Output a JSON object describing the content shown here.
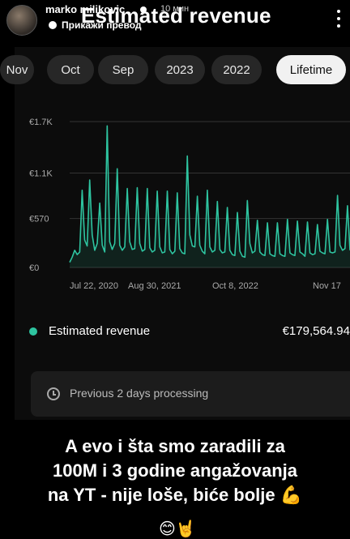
{
  "story": {
    "username": "marko milikovic",
    "time_ago": "10 мин",
    "translate_label": "Прикажи превод",
    "title": "Estimated revenue"
  },
  "tabs": [
    {
      "label": "Nov",
      "active": false
    },
    {
      "label": "Oct",
      "active": false
    },
    {
      "label": "Sep",
      "active": false
    },
    {
      "label": "2023",
      "active": false
    },
    {
      "label": "2022",
      "active": false
    },
    {
      "label": "Lifetime",
      "active": true
    }
  ],
  "chart_data": {
    "type": "line",
    "title": "",
    "xlabel": "",
    "ylabel": "",
    "y_ticks": [
      "€1.7K",
      "€1.1K",
      "€570",
      "€0"
    ],
    "x_ticks": [
      "Jul 22, 2020",
      "Aug 30, 2021",
      "Oct 8, 2022",
      "Nov 17"
    ],
    "ylim": [
      0,
      1700
    ],
    "grid": true,
    "series": [
      {
        "name": "Estimated revenue",
        "color": "#2ec4a0",
        "values": [
          60,
          120,
          200,
          150,
          180,
          900,
          320,
          250,
          1020,
          380,
          200,
          280,
          750,
          260,
          180,
          1650,
          300,
          210,
          280,
          1150,
          260,
          200,
          240,
          920,
          300,
          210,
          220,
          930,
          280,
          190,
          210,
          920,
          230,
          180,
          200,
          890,
          240,
          170,
          180,
          890,
          210,
          160,
          190,
          870,
          220,
          170,
          160,
          1300,
          380,
          250,
          240,
          830,
          260,
          190,
          160,
          900,
          240,
          180,
          200,
          770,
          210,
          170,
          180,
          700,
          200,
          150,
          140,
          640,
          190,
          130,
          120,
          780,
          280,
          170,
          190,
          550,
          180,
          150,
          140,
          520,
          160,
          140,
          130,
          520,
          160,
          140,
          130,
          560,
          170,
          150,
          140,
          540,
          180,
          160,
          130,
          530,
          170,
          150,
          160,
          500,
          190,
          170,
          160,
          560,
          180,
          170,
          180,
          840,
          260,
          200,
          220,
          720,
          200
        ]
      }
    ]
  },
  "legend": {
    "label": "Estimated revenue",
    "value": "€179,564.94",
    "color": "#2ec4a0"
  },
  "processing": {
    "text": "Previous 2 days processing"
  },
  "caption": {
    "lines": [
      "A evo i šta smo zaradili za",
      "100M i 3 godine angažovanja",
      "na YT - nije loše, biće bolje 💪"
    ],
    "emoji": "😊🤘"
  }
}
